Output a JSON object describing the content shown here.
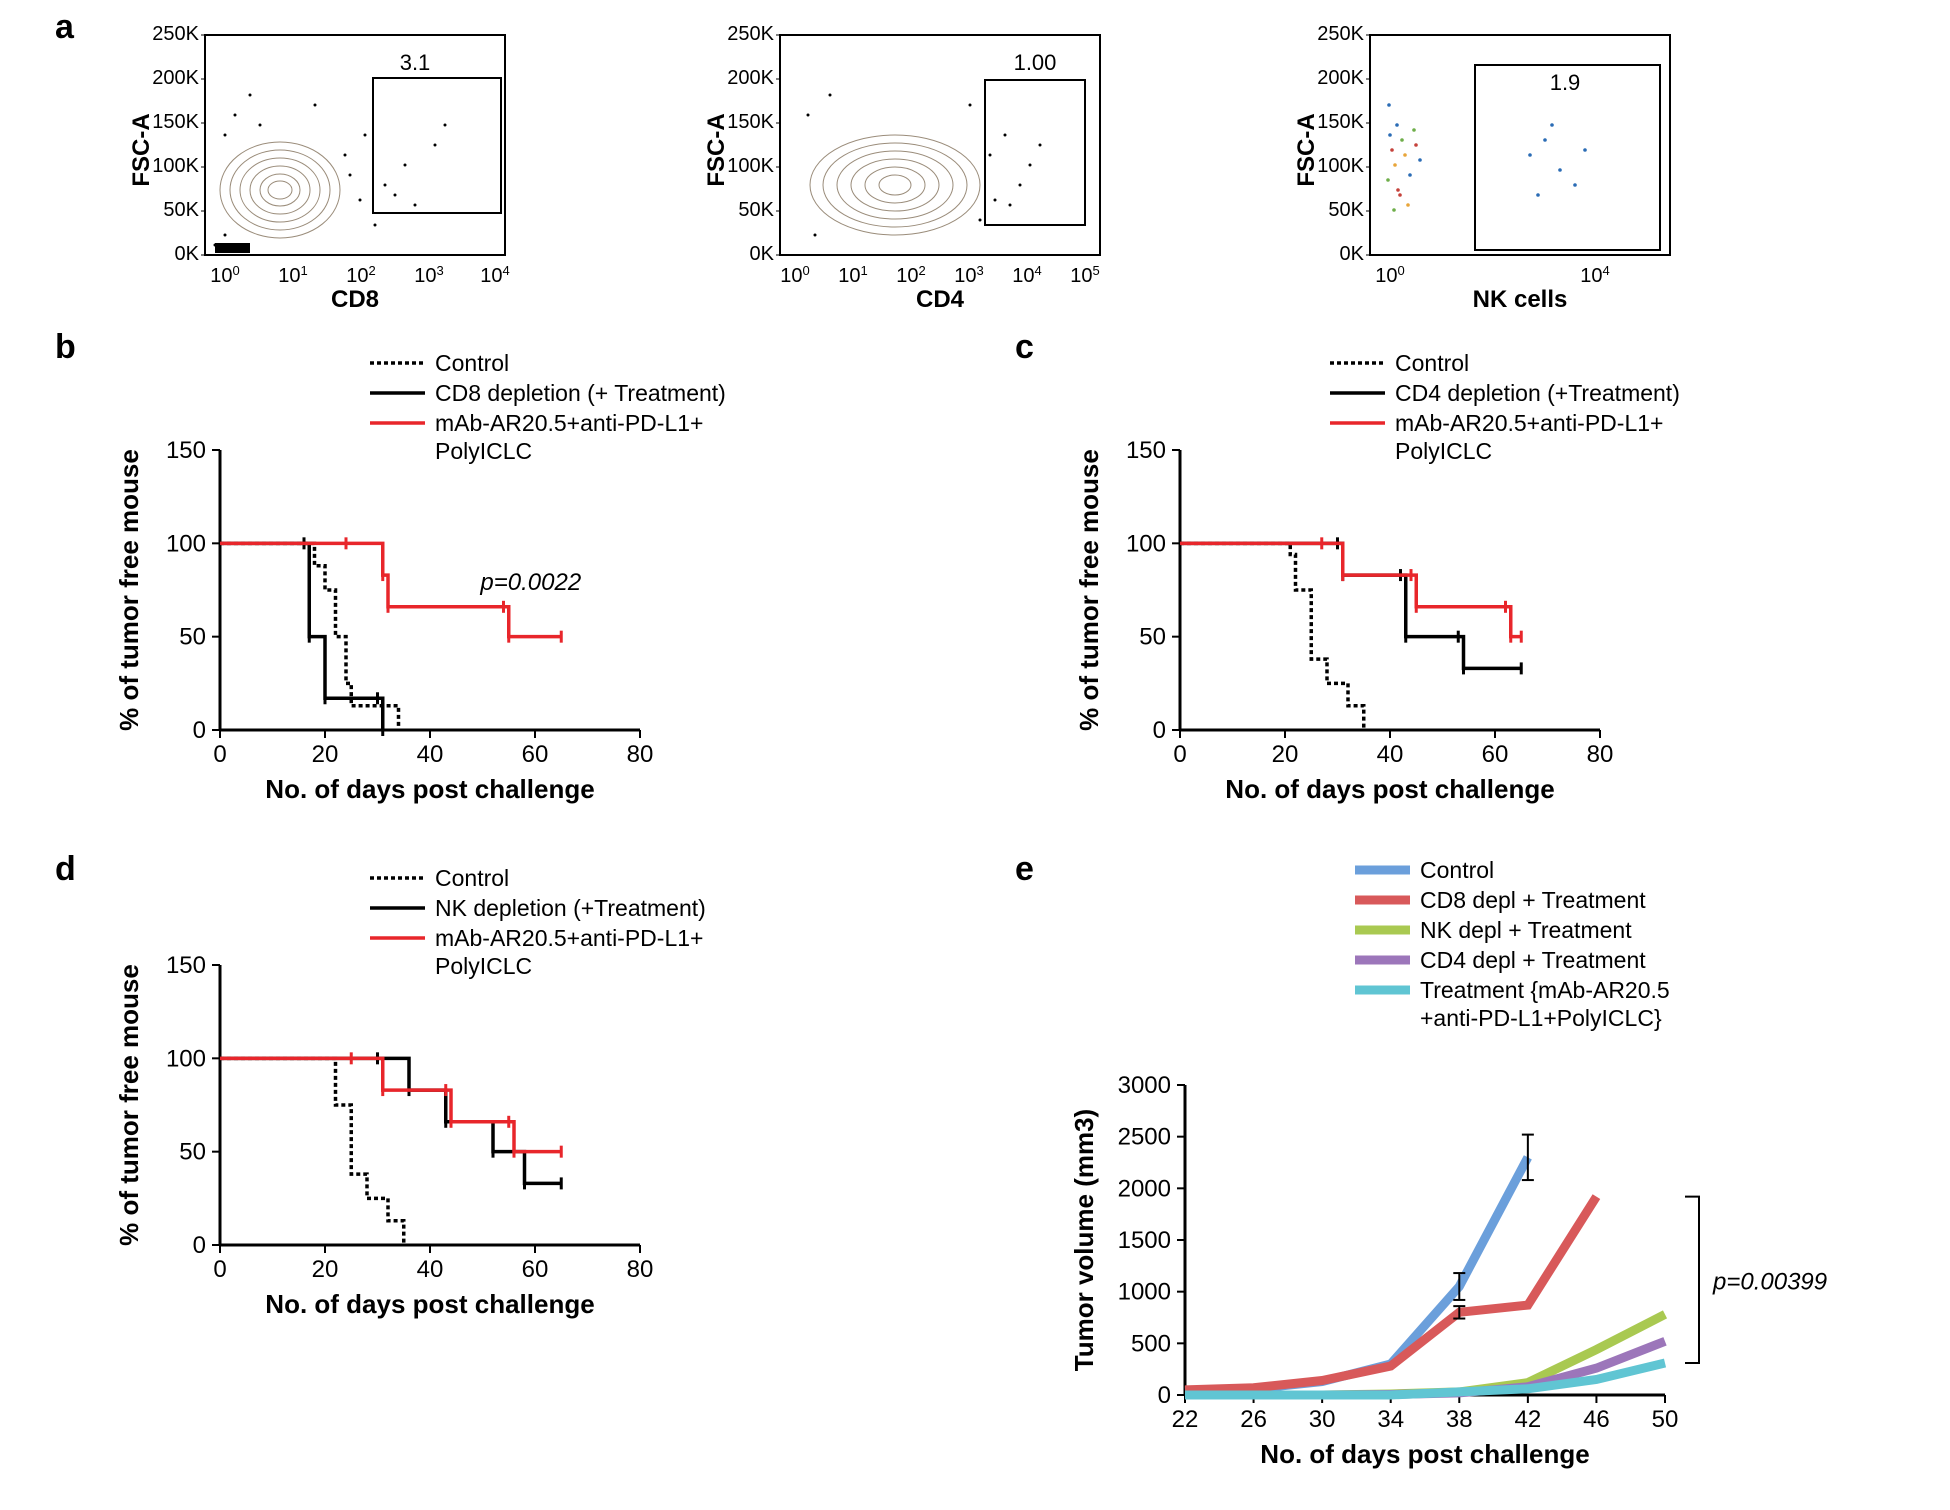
{
  "panel_a": {
    "label": "a",
    "plots": [
      {
        "xlabel": "CD8",
        "ylabel": "FSC-A",
        "gate_pct": "3.1",
        "xlog": true,
        "xtick_labels": [
          "10^0",
          "10^1",
          "10^2",
          "10^3",
          "10^4"
        ],
        "ytick_labels": [
          "0K",
          "50K",
          "100K",
          "150K",
          "200K",
          "250K"
        ],
        "type": "contour"
      },
      {
        "xlabel": "CD4",
        "ylabel": "FSC-A",
        "gate_pct": "1.00",
        "xlog": true,
        "xtick_labels": [
          "10^0",
          "10^1",
          "10^2",
          "10^3",
          "10^4",
          "10^5"
        ],
        "ytick_labels": [
          "0K",
          "50K",
          "100K",
          "150K",
          "200K",
          "250K"
        ],
        "type": "contour"
      },
      {
        "xlabel": "NK cells",
        "ylabel": "FSC-A",
        "gate_pct": "1.9",
        "xlog": true,
        "xtick_labels": [
          "10^0",
          "",
          "",
          "",
          "10^4"
        ],
        "ytick_labels": [
          "0K",
          "50K",
          "100K",
          "150K",
          "200K",
          "250K"
        ],
        "type": "density"
      }
    ]
  },
  "panel_b": {
    "label": "b",
    "type": "survival",
    "xlabel": "No. of days post challenge",
    "ylabel": "% of tumor free mouse",
    "xlim": [
      0,
      80
    ],
    "xtick_step": 20,
    "ylim": [
      0,
      150
    ],
    "ytick_step": 50,
    "p_value": "p=0.0022",
    "series": [
      {
        "name": "Control",
        "dash": "4,3",
        "color": "#000000",
        "pts": [
          [
            0,
            100
          ],
          [
            15,
            100
          ],
          [
            18,
            88
          ],
          [
            20,
            75
          ],
          [
            22,
            50
          ],
          [
            24,
            25
          ],
          [
            25,
            13
          ],
          [
            33,
            13
          ],
          [
            34,
            0
          ]
        ]
      },
      {
        "name": "CD8 depletion (+ Treatment)",
        "dash": "none",
        "color": "#000000",
        "pts": [
          [
            0,
            100
          ],
          [
            16,
            100
          ],
          [
            17,
            50
          ],
          [
            20,
            17
          ],
          [
            30,
            17
          ],
          [
            31,
            0
          ]
        ]
      },
      {
        "name": "mAb-AR20.5+anti-PD-L1+ PolyICLC",
        "dash": "none",
        "color": "#e8262b",
        "pts": [
          [
            0,
            100
          ],
          [
            24,
            100
          ],
          [
            31,
            83
          ],
          [
            32,
            66
          ],
          [
            54,
            66
          ],
          [
            55,
            50
          ],
          [
            65,
            50
          ]
        ]
      }
    ]
  },
  "panel_c": {
    "label": "c",
    "type": "survival",
    "xlabel": "No. of days post challenge",
    "ylabel": "% of tumor free mouse",
    "xlim": [
      0,
      80
    ],
    "xtick_step": 20,
    "ylim": [
      0,
      150
    ],
    "ytick_step": 50,
    "series": [
      {
        "name": "Control",
        "dash": "4,3",
        "color": "#000000",
        "pts": [
          [
            0,
            100
          ],
          [
            20,
            100
          ],
          [
            21,
            94
          ],
          [
            22,
            75
          ],
          [
            25,
            38
          ],
          [
            28,
            25
          ],
          [
            32,
            13
          ],
          [
            35,
            0
          ]
        ]
      },
      {
        "name": "CD4 depletion (+Treatment)",
        "dash": "none",
        "color": "#000000",
        "pts": [
          [
            0,
            100
          ],
          [
            30,
            100
          ],
          [
            31,
            83
          ],
          [
            42,
            83
          ],
          [
            43,
            50
          ],
          [
            53,
            50
          ],
          [
            54,
            33
          ],
          [
            65,
            33
          ]
        ]
      },
      {
        "name": "mAb-AR20.5+anti-PD-L1+ PolyICLC",
        "dash": "none",
        "color": "#e8262b",
        "pts": [
          [
            0,
            100
          ],
          [
            27,
            100
          ],
          [
            31,
            83
          ],
          [
            44,
            83
          ],
          [
            45,
            66
          ],
          [
            62,
            66
          ],
          [
            63,
            50
          ],
          [
            65,
            50
          ]
        ]
      }
    ]
  },
  "panel_d": {
    "label": "d",
    "type": "survival",
    "xlabel": "No. of days post challenge",
    "ylabel": "% of tumor free mouse",
    "xlim": [
      0,
      80
    ],
    "xtick_step": 20,
    "ylim": [
      0,
      150
    ],
    "ytick_step": 50,
    "series": [
      {
        "name": "Control",
        "dash": "4,3",
        "color": "#000000",
        "pts": [
          [
            0,
            100
          ],
          [
            20,
            100
          ],
          [
            22,
            75
          ],
          [
            25,
            38
          ],
          [
            28,
            25
          ],
          [
            32,
            13
          ],
          [
            35,
            0
          ]
        ]
      },
      {
        "name": "NK depletion (+Treatment)",
        "dash": "none",
        "color": "#000000",
        "pts": [
          [
            0,
            100
          ],
          [
            30,
            100
          ],
          [
            36,
            83
          ],
          [
            43,
            66
          ],
          [
            52,
            50
          ],
          [
            58,
            33
          ],
          [
            65,
            33
          ]
        ]
      },
      {
        "name": "mAb-AR20.5+anti-PD-L1+ PolyICLC",
        "dash": "none",
        "color": "#e8262b",
        "pts": [
          [
            0,
            100
          ],
          [
            25,
            100
          ],
          [
            31,
            83
          ],
          [
            43,
            83
          ],
          [
            44,
            66
          ],
          [
            55,
            66
          ],
          [
            56,
            50
          ],
          [
            65,
            50
          ]
        ]
      }
    ]
  },
  "panel_e": {
    "label": "e",
    "type": "line",
    "xlabel": "No. of days post challenge",
    "ylabel": "Tumor volume (mm3)",
    "xticks": [
      22,
      26,
      30,
      34,
      38,
      42,
      46,
      50
    ],
    "ylim": [
      0,
      3000
    ],
    "ytick_step": 500,
    "p_value": "p=0.00399",
    "line_width": 9,
    "series": [
      {
        "name": "Control",
        "color": "#6b9fdb",
        "pts": [
          [
            22,
            40
          ],
          [
            26,
            60
          ],
          [
            30,
            130
          ],
          [
            34,
            300
          ],
          [
            38,
            1050
          ],
          [
            42,
            2300
          ]
        ],
        "err": [
          [
            38,
            130
          ],
          [
            42,
            220
          ]
        ]
      },
      {
        "name": "CD8 depl + Treatment",
        "color": "#d8595a",
        "pts": [
          [
            22,
            50
          ],
          [
            26,
            70
          ],
          [
            30,
            140
          ],
          [
            34,
            280
          ],
          [
            38,
            800
          ],
          [
            42,
            870
          ],
          [
            46,
            1920
          ]
        ],
        "err": [
          [
            38,
            60
          ]
        ]
      },
      {
        "name": "NK depl + Treatment",
        "color": "#a9c951",
        "pts": [
          [
            22,
            0
          ],
          [
            26,
            0
          ],
          [
            30,
            0
          ],
          [
            34,
            10
          ],
          [
            38,
            30
          ],
          [
            42,
            120
          ],
          [
            46,
            440
          ],
          [
            50,
            780
          ]
        ]
      },
      {
        "name": "CD4 depl + Treatment",
        "color": "#9c76ba",
        "pts": [
          [
            22,
            0
          ],
          [
            26,
            0
          ],
          [
            30,
            0
          ],
          [
            34,
            5
          ],
          [
            38,
            20
          ],
          [
            42,
            80
          ],
          [
            46,
            260
          ],
          [
            50,
            520
          ]
        ]
      },
      {
        "name": "Treatment {mAb-AR20.5 +anti-PD-L1+PolyICLC}",
        "color": "#60c5d3",
        "pts": [
          [
            22,
            0
          ],
          [
            26,
            0
          ],
          [
            30,
            0
          ],
          [
            34,
            0
          ],
          [
            38,
            30
          ],
          [
            42,
            60
          ],
          [
            46,
            150
          ],
          [
            50,
            310
          ]
        ]
      }
    ]
  },
  "colors": {
    "axis": "#000000",
    "bg": "#ffffff"
  }
}
